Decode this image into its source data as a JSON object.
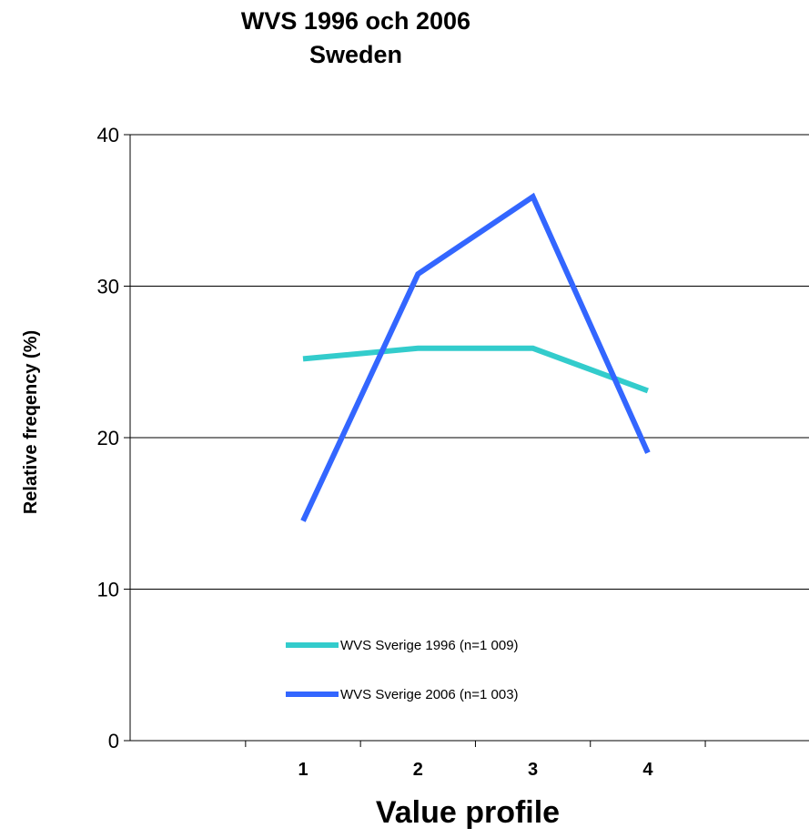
{
  "chart_data": {
    "type": "line",
    "title": "WVS 1996 och 2006",
    "subtitle": "Sweden",
    "xlabel": "Value profile",
    "ylabel": "Relative freqency (%)",
    "categories": [
      "1",
      "2",
      "3",
      "4"
    ],
    "yticks": [
      "0",
      "10",
      "20",
      "30",
      "40"
    ],
    "ylim": [
      0,
      40
    ],
    "grid": true,
    "legend_position": "inside-lower-left",
    "series": [
      {
        "name": "WVS Sverige 1996 (n=1 009)",
        "color": "#33CCCC",
        "values": [
          25.2,
          25.9,
          25.9,
          23.1
        ]
      },
      {
        "name": "WVS Sverige 2006 (n=1 003)",
        "color": "#3366FF",
        "values": [
          14.5,
          30.8,
          35.9,
          19.0
        ]
      }
    ]
  }
}
